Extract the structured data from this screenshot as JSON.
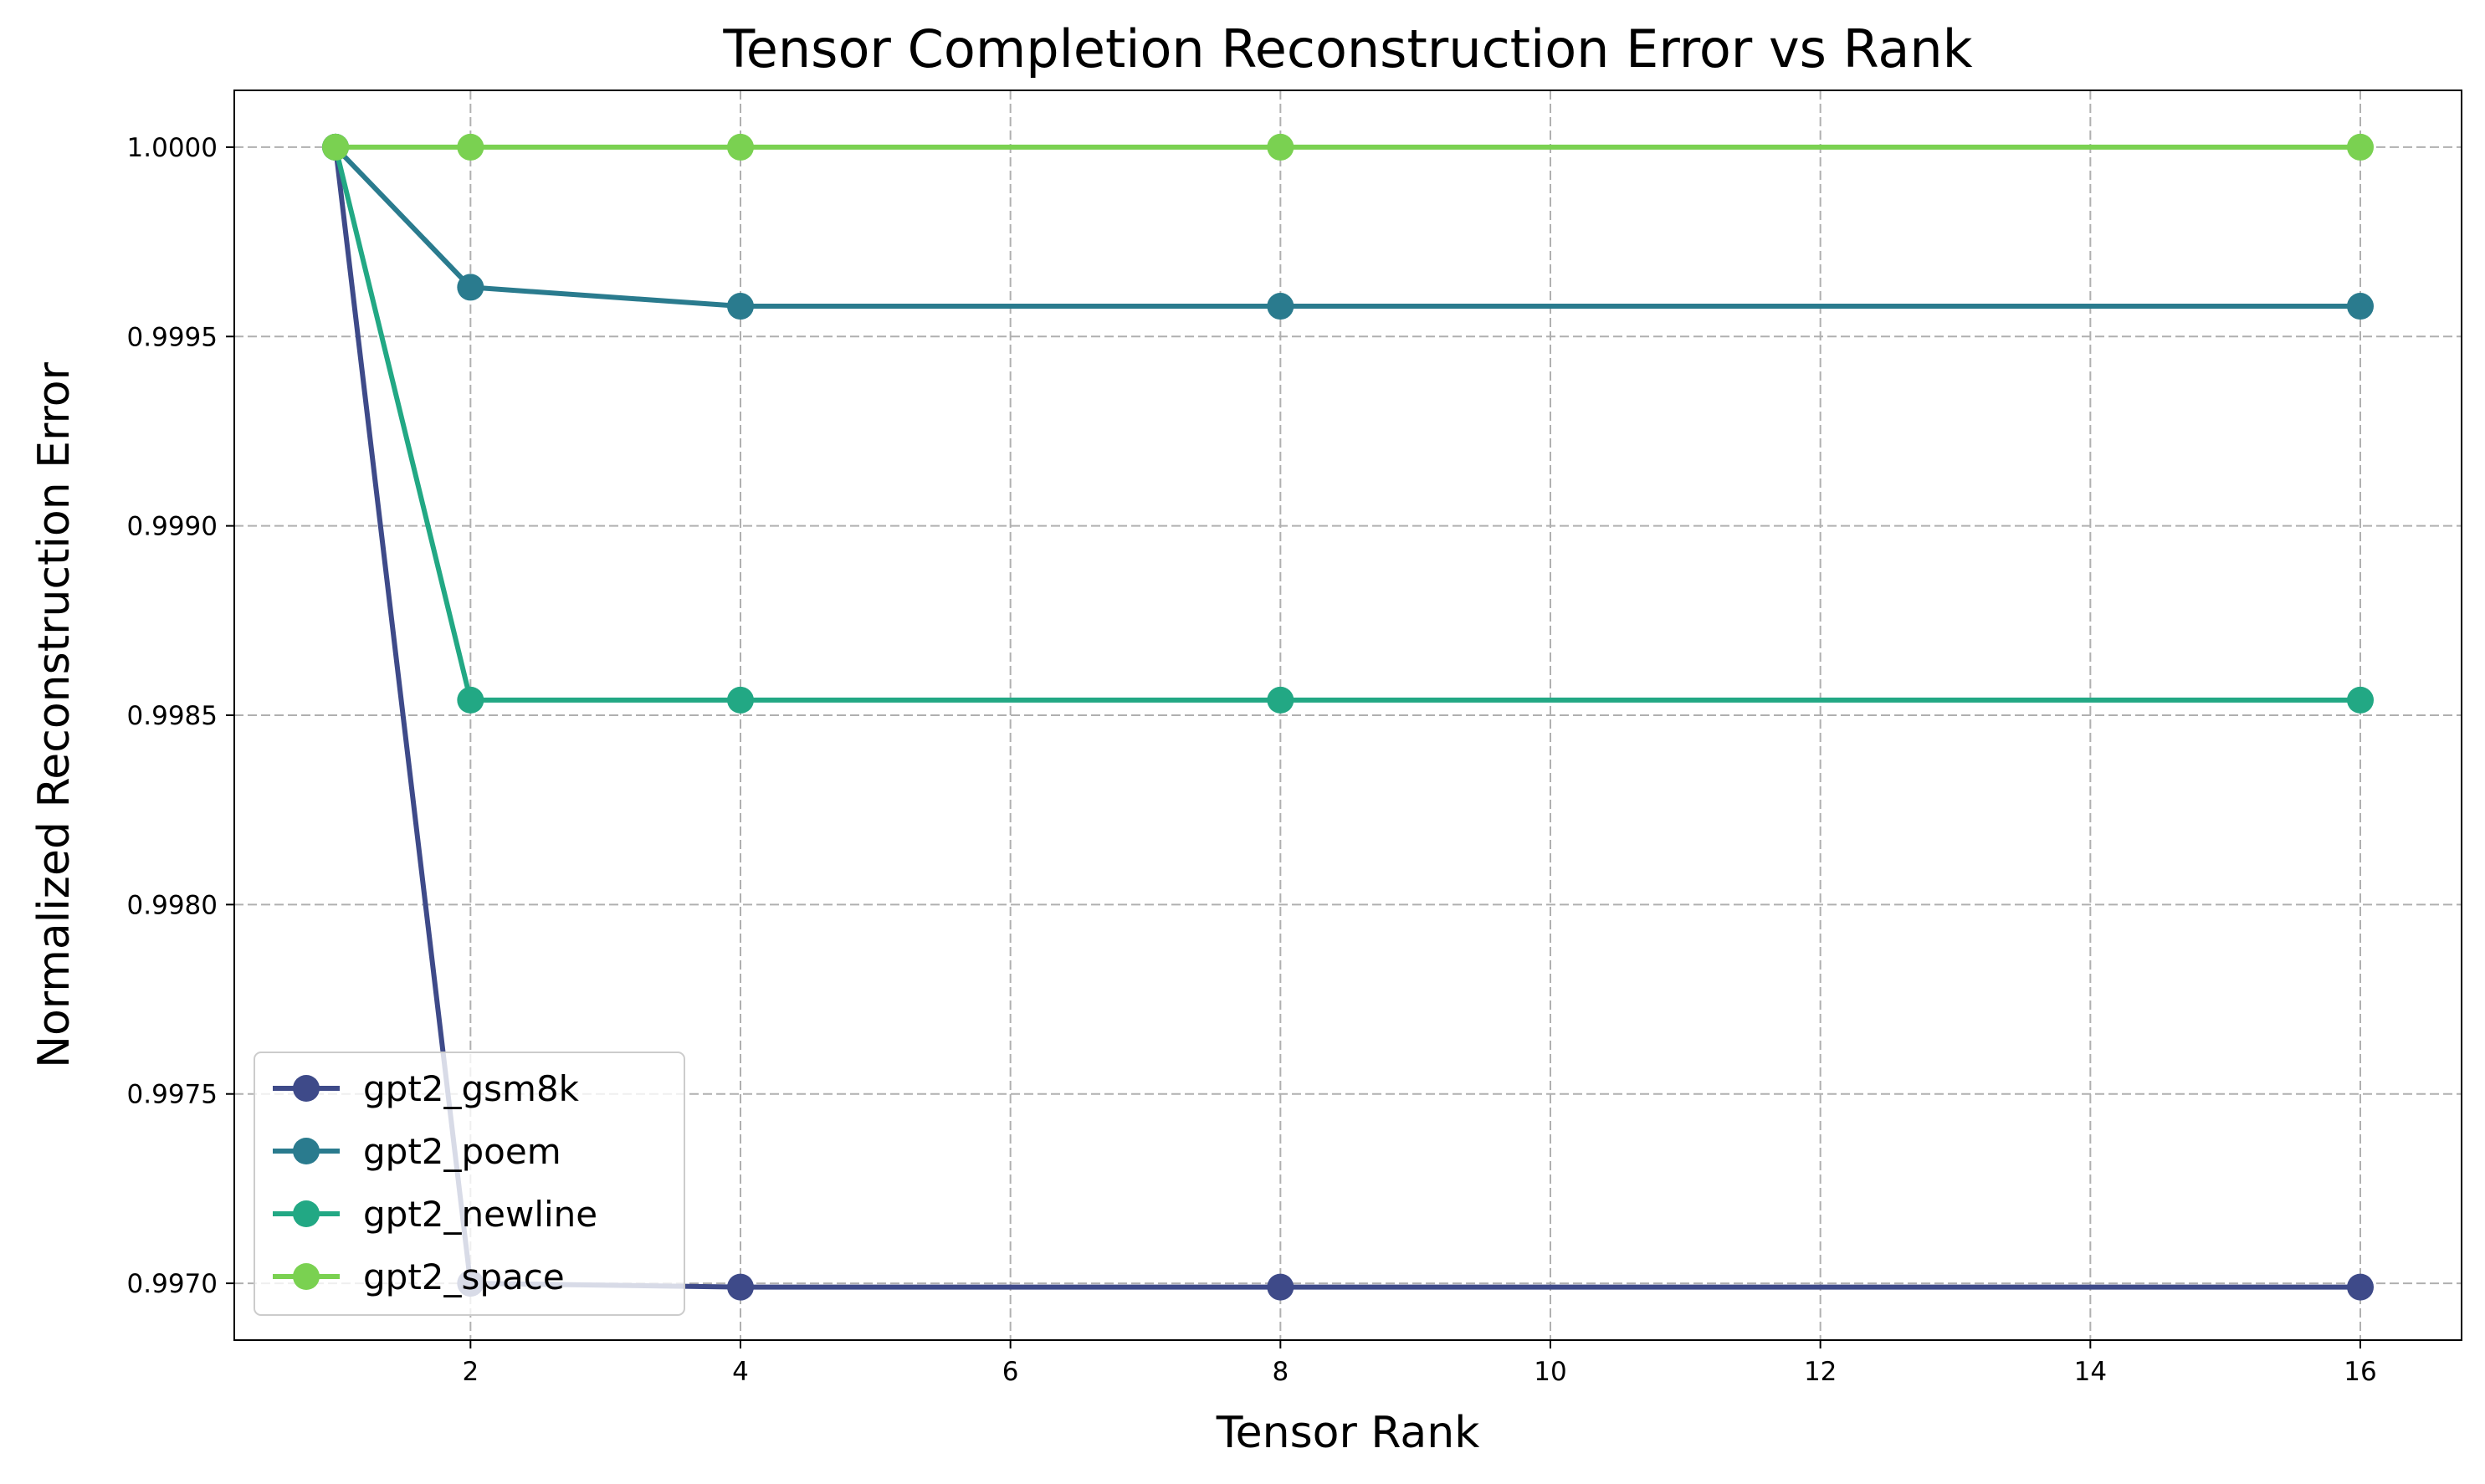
{
  "chart_data": {
    "type": "line",
    "title": "Tensor Completion Reconstruction Error vs Rank",
    "xlabel": "Tensor Rank",
    "ylabel": "Normalized Reconstruction Error",
    "x": [
      1,
      2,
      4,
      8,
      16
    ],
    "xlim": [
      0.25,
      16.75
    ],
    "ylim": [
      0.99685,
      1.00015
    ],
    "xticks": [
      2,
      4,
      6,
      8,
      10,
      12,
      14,
      16
    ],
    "xtick_labels": [
      "2",
      "4",
      "6",
      "8",
      "10",
      "12",
      "14",
      "16"
    ],
    "yticks": [
      0.997,
      0.9975,
      0.998,
      0.9985,
      0.999,
      0.9995,
      1.0
    ],
    "ytick_labels": [
      "0.9970",
      "0.9975",
      "0.9980",
      "0.9985",
      "0.9990",
      "0.9995",
      "1.0000"
    ],
    "grid": true,
    "legend_position": "lower-left",
    "series": [
      {
        "name": "gpt2_gsm8k",
        "color": "#3e4a89",
        "values": [
          1.0,
          0.997,
          0.99699,
          0.99699,
          0.99699
        ]
      },
      {
        "name": "gpt2_poem",
        "color": "#2a7b8e",
        "values": [
          1.0,
          0.99963,
          0.99958,
          0.99958,
          0.99958
        ]
      },
      {
        "name": "gpt2_newline",
        "color": "#22a884",
        "values": [
          1.0,
          0.99854,
          0.99854,
          0.99854,
          0.99854
        ]
      },
      {
        "name": "gpt2_space",
        "color": "#7ad151",
        "values": [
          1.0,
          1.0,
          1.0,
          1.0,
          1.0
        ]
      }
    ]
  }
}
